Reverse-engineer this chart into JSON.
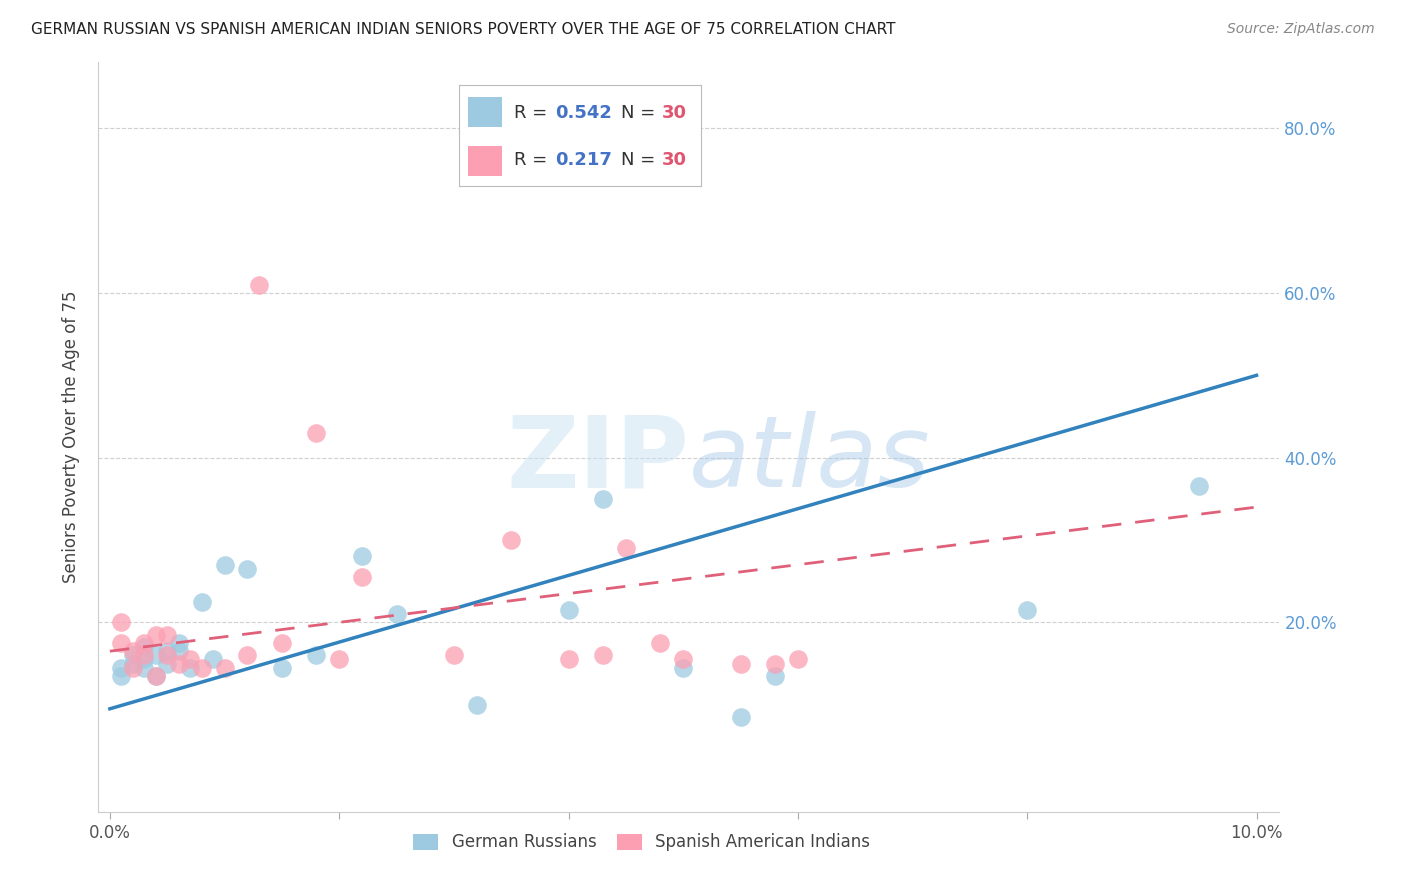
{
  "title": "GERMAN RUSSIAN VS SPANISH AMERICAN INDIAN SENIORS POVERTY OVER THE AGE OF 75 CORRELATION CHART",
  "source": "Source: ZipAtlas.com",
  "ylabel": "Seniors Poverty Over the Age of 75",
  "xlim": [
    -0.001,
    0.102
  ],
  "ylim": [
    -0.03,
    0.88
  ],
  "blue_color": "#9ecae1",
  "pink_color": "#fc9fb2",
  "blue_line_color": "#3182bd",
  "pink_line_color": "#e0607a",
  "watermark_zip": "ZIP",
  "watermark_atlas": "atlas",
  "german_russian_R": 0.542,
  "german_russian_N": 30,
  "spanish_american_indian_R": 0.217,
  "spanish_american_indian_N": 30,
  "gr_x": [
    0.001,
    0.001,
    0.002,
    0.002,
    0.003,
    0.003,
    0.003,
    0.004,
    0.004,
    0.005,
    0.005,
    0.006,
    0.006,
    0.007,
    0.008,
    0.009,
    0.01,
    0.012,
    0.015,
    0.018,
    0.022,
    0.025,
    0.032,
    0.04,
    0.043,
    0.05,
    0.055,
    0.058,
    0.08,
    0.095
  ],
  "gr_y": [
    0.145,
    0.135,
    0.15,
    0.16,
    0.145,
    0.17,
    0.155,
    0.135,
    0.16,
    0.15,
    0.165,
    0.175,
    0.165,
    0.145,
    0.225,
    0.155,
    0.27,
    0.265,
    0.145,
    0.16,
    0.28,
    0.21,
    0.1,
    0.215,
    0.35,
    0.145,
    0.085,
    0.135,
    0.215,
    0.365
  ],
  "sai_x": [
    0.001,
    0.001,
    0.002,
    0.002,
    0.003,
    0.003,
    0.004,
    0.004,
    0.005,
    0.005,
    0.006,
    0.007,
    0.008,
    0.01,
    0.012,
    0.013,
    0.015,
    0.018,
    0.02,
    0.022,
    0.03,
    0.035,
    0.04,
    0.043,
    0.045,
    0.048,
    0.05,
    0.055,
    0.058,
    0.06
  ],
  "sai_y": [
    0.175,
    0.2,
    0.165,
    0.145,
    0.175,
    0.16,
    0.185,
    0.135,
    0.185,
    0.16,
    0.15,
    0.155,
    0.145,
    0.145,
    0.16,
    0.61,
    0.175,
    0.43,
    0.155,
    0.255,
    0.16,
    0.3,
    0.155,
    0.16,
    0.29,
    0.175,
    0.155,
    0.15,
    0.15,
    0.155
  ]
}
